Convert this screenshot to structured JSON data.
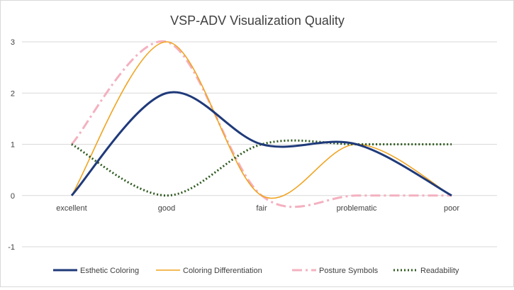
{
  "chart_data": {
    "type": "line",
    "title": "VSP-ADV Visualization Quality",
    "xlabel": "",
    "ylabel": "",
    "categories": [
      "excellent",
      "good",
      "fair",
      "problematic",
      "poor"
    ],
    "ylim": [
      -1,
      3
    ],
    "yticks": [
      -1,
      0,
      1,
      2,
      3
    ],
    "grid": true,
    "smooth": true,
    "legend_position": "bottom",
    "series": [
      {
        "name": "Esthetic Coloring",
        "values": [
          0,
          2,
          1,
          1,
          0
        ],
        "color": "#1f3a7a",
        "style": "solid-thick"
      },
      {
        "name": "Coloring Differentiation",
        "values": [
          0,
          3,
          0,
          1,
          0
        ],
        "color": "#f0a31f",
        "style": "solid-thin"
      },
      {
        "name": "Posture Symbols",
        "values": [
          1,
          3,
          0,
          0,
          0
        ],
        "color": "#f4b1c0",
        "style": "dash-dot"
      },
      {
        "name": "Readability",
        "values": [
          1,
          0,
          1,
          1,
          1
        ],
        "color": "#2e5a1f",
        "style": "dotted"
      }
    ]
  }
}
